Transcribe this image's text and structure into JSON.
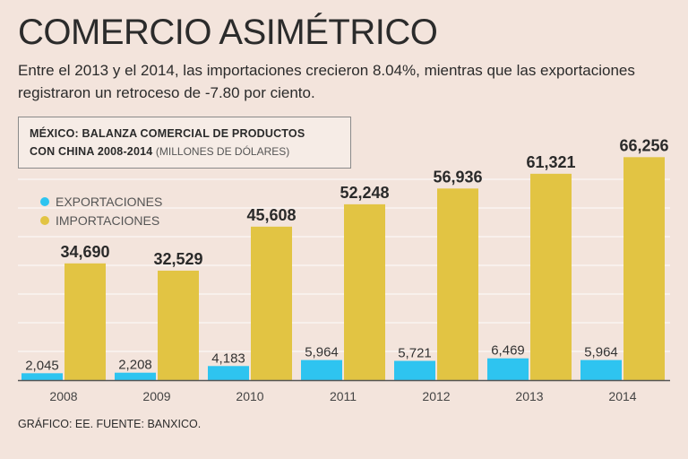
{
  "headline": "COMERCIO ASIMÉTRICO",
  "subtitle": "Entre el 2013 y el 2014, las importaciones crecieron 8.04%, mientras que las exportaciones registraron un retroceso de -7.80 por ciento.",
  "footer": "GRÁFICO: EE. FUENTE: BANXICO.",
  "colors": {
    "background": "#f3e4dc",
    "exportaciones": "#2ec4f0",
    "importaciones": "#e2c443",
    "grid": "#ffffff",
    "axis": "#555555"
  },
  "chart_data": {
    "type": "bar",
    "title_line1": "MÉXICO: BALANZA COMERCIAL DE PRODUCTOS",
    "title_line2": "CON CHINA 2008-2014",
    "units": "(MILLONES DE DÓLARES)",
    "categories": [
      "2008",
      "2009",
      "2010",
      "2011",
      "2012",
      "2013",
      "2014"
    ],
    "series": [
      {
        "name": "EXPORTACIONES",
        "values": [
          2045,
          2208,
          4183,
          5964,
          5721,
          6469,
          5964
        ],
        "labels": [
          "2,045",
          "2,208",
          "4,183",
          "5,964",
          "5,721",
          "6,469",
          "5,964"
        ]
      },
      {
        "name": "IMPORTACIONES",
        "values": [
          34690,
          32529,
          45608,
          52248,
          56936,
          61321,
          66256
        ],
        "labels": [
          "34,690",
          "32,529",
          "45,608",
          "52,248",
          "56,936",
          "61,321",
          "66,256"
        ]
      }
    ],
    "ylim": [
      0,
      73000
    ],
    "legend_position": "top-left",
    "grid": true
  }
}
